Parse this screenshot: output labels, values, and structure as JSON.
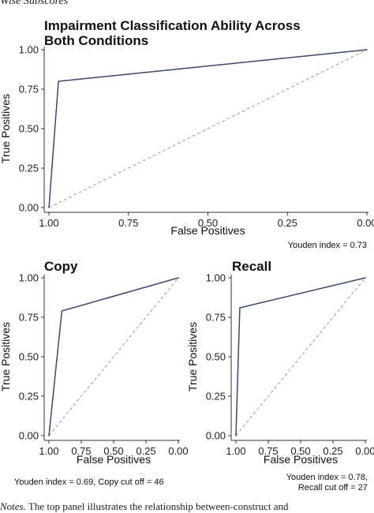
{
  "page": {
    "header_text": "Wise Subscores",
    "footer_prefix": "Notes.",
    "footer_text": "The top panel illustrates the relationship between-construct and"
  },
  "chart_data": [
    {
      "id": "combined",
      "type": "line",
      "title_lines": [
        "Impairment Classification Ability Across",
        "Both Conditions"
      ],
      "xlabel": "False Positives",
      "ylabel": "True Positives",
      "x_reversed": true,
      "xlim": [
        1.0,
        0.0
      ],
      "ylim": [
        0.0,
        1.0
      ],
      "x_ticks": [
        1.0,
        0.75,
        0.5,
        0.25,
        0.0
      ],
      "x_tick_labels": [
        "1.00",
        "0.75",
        "0.50",
        "0.25",
        "0.00"
      ],
      "y_ticks": [
        0.0,
        0.25,
        0.5,
        0.75,
        1.0
      ],
      "y_tick_labels": [
        "0.00",
        "0.25",
        "0.50",
        "0.75",
        "1.00"
      ],
      "grid": false,
      "series": [
        {
          "x": [
            1.0,
            0.97,
            0.0
          ],
          "y": [
            0.0,
            0.8,
            1.0
          ]
        }
      ],
      "reference_line": {
        "x": [
          1.0,
          0.0
        ],
        "y": [
          0.0,
          1.0
        ],
        "style": "dashed"
      },
      "annotation_lines": [
        "Youden index =  0.73"
      ],
      "colors": {
        "roc": "#3a4a6b",
        "reference": "#9a9a9a"
      }
    },
    {
      "id": "copy",
      "type": "line",
      "title_lines": [
        "Copy"
      ],
      "xlabel": "False Positives",
      "ylabel": "True Positives",
      "x_reversed": true,
      "xlim": [
        1.0,
        0.0
      ],
      "ylim": [
        0.0,
        1.0
      ],
      "x_ticks": [
        1.0,
        0.75,
        0.5,
        0.25,
        0.0
      ],
      "x_tick_labels": [
        "1.00",
        "0.75",
        "0.50",
        "0.25",
        "0.00"
      ],
      "y_ticks": [
        0.0,
        0.25,
        0.5,
        0.75,
        1.0
      ],
      "y_tick_labels": [
        "0.00",
        "0.25",
        "0.50",
        "0.75",
        "1.00"
      ],
      "grid": false,
      "series": [
        {
          "x": [
            1.0,
            0.9,
            0.0
          ],
          "y": [
            0.0,
            0.79,
            1.0
          ]
        }
      ],
      "reference_line": {
        "x": [
          1.0,
          0.0
        ],
        "y": [
          0.0,
          1.0
        ],
        "style": "dashed"
      },
      "annotation_lines": [
        "Youden index = 0.69, Copy cut off = 46"
      ],
      "colors": {
        "roc": "#3a4a6b",
        "reference": "#9a9a9a"
      }
    },
    {
      "id": "recall",
      "type": "line",
      "title_lines": [
        "Recall"
      ],
      "xlabel": "False Positives",
      "ylabel": "True Positives",
      "x_reversed": true,
      "xlim": [
        1.0,
        0.0
      ],
      "ylim": [
        0.0,
        1.0
      ],
      "x_ticks": [
        1.0,
        0.75,
        0.5,
        0.25,
        0.0
      ],
      "x_tick_labels": [
        "1.00",
        "0.75",
        "0.50",
        "0.25",
        "0.00"
      ],
      "y_ticks": [
        0.0,
        0.25,
        0.5,
        0.75,
        1.0
      ],
      "y_tick_labels": [
        "0.00",
        "0.25",
        "0.50",
        "0.75",
        "1.00"
      ],
      "grid": false,
      "series": [
        {
          "x": [
            1.0,
            0.97,
            0.0
          ],
          "y": [
            0.0,
            0.81,
            1.0
          ]
        }
      ],
      "reference_line": {
        "x": [
          1.0,
          0.0
        ],
        "y": [
          0.0,
          1.0
        ],
        "style": "dashed"
      },
      "annotation_lines": [
        "Youden index = 0.78,",
        "Recall cut off = 27"
      ],
      "colors": {
        "roc": "#3a4a6b",
        "reference": "#9a9a9a"
      }
    }
  ]
}
